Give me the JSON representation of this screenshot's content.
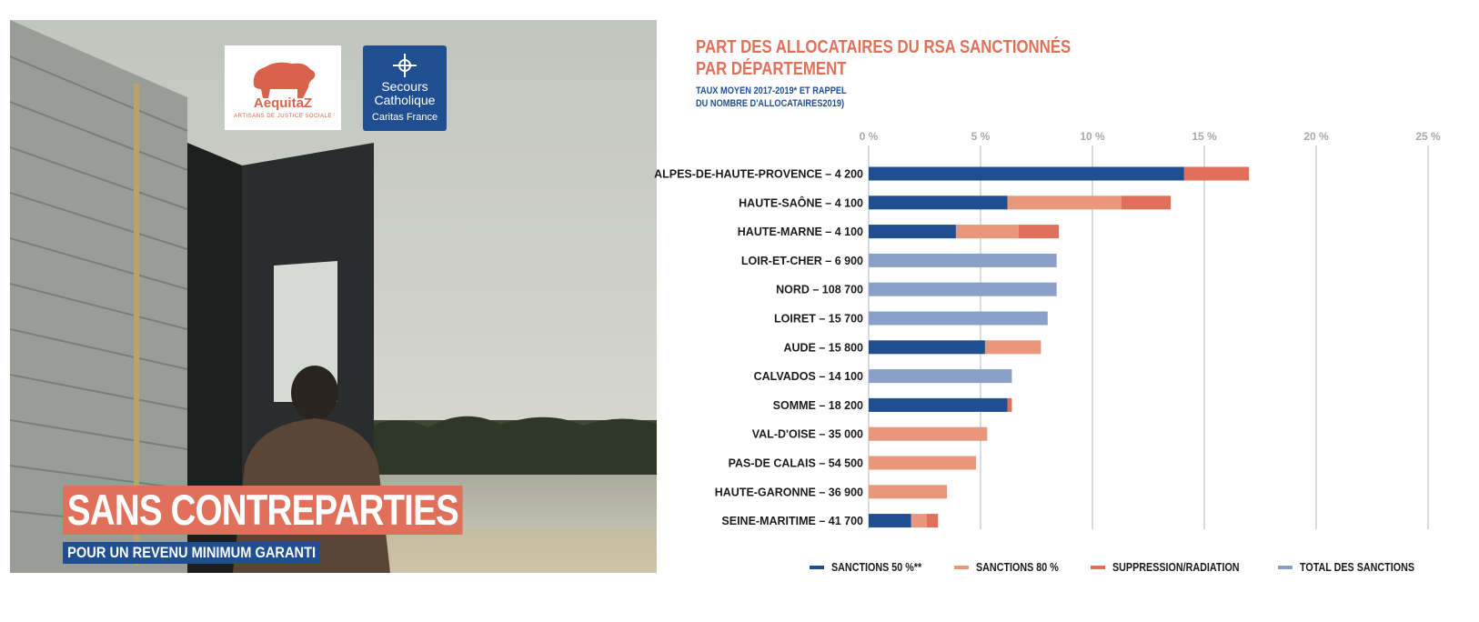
{
  "cover": {
    "title": "SANS CONTREPARTIES",
    "subtitle": "POUR UN REVENU MINIMUM GARANTI",
    "logo_aequitaz": {
      "name": "AequitaZ",
      "tagline": "ARTISANS DE JUSTICE SOCIALE"
    },
    "logo_secours": {
      "line1": "Secours",
      "line2": "Catholique",
      "line3": "Caritas France"
    },
    "colors": {
      "accent": "#e0705a",
      "blue": "#1f4e91"
    }
  },
  "chart_data": {
    "type": "bar",
    "orientation": "horizontal",
    "stacked": true,
    "title_line1": "PART DES ALLOCATAIRES DU RSA SANCTIONNÉS",
    "title_line2": "PAR DÉPARTEMENT",
    "subtitle_line1": "TAUX MOYEN 2017-2019* ET RAPPEL",
    "subtitle_line2": "DU NOMBRE D'ALLOCATAIRES2019)",
    "xlim": [
      0,
      25
    ],
    "ticks": [
      0,
      5,
      10,
      15,
      20,
      25
    ],
    "tick_labels": [
      "0 %",
      "5 %",
      "10 %",
      "15 %",
      "20 %",
      "25 %"
    ],
    "grid": true,
    "legend_position": "bottom",
    "categories": [
      "ALPES-DE-HAUTE-PROVENCE – 4 200",
      "HAUTE-SAÔNE – 4 100",
      "HAUTE-MARNE – 4 100",
      "LOIR-ET-CHER – 6 900",
      "NORD – 108 700",
      "LOIRET – 15 700",
      "AUDE – 15 800",
      "CALVADOS – 14 100",
      "SOMME – 18 200",
      "VAL-D'OISE – 35 000",
      "PAS-DE CALAIS – 54 500",
      "HAUTE-GARONNE – 36 900",
      "SEINE-MARITIME – 41 700"
    ],
    "series": [
      {
        "name": "SANCTIONS 50 %**",
        "color": "#1f4e91",
        "values": [
          14.1,
          6.2,
          3.9,
          0,
          0,
          0,
          5.2,
          0,
          6.2,
          0,
          0,
          0,
          1.9
        ]
      },
      {
        "name": "SANCTIONS 80 %",
        "color": "#e9967a",
        "values": [
          0,
          5.1,
          2.8,
          0,
          0,
          0,
          2.5,
          0,
          0,
          5.3,
          4.8,
          3.5,
          0.7
        ]
      },
      {
        "name": "SUPPRESSION/RADIATION",
        "color": "#e0705a",
        "values": [
          2.9,
          2.2,
          1.8,
          0,
          0,
          0,
          0,
          0,
          0.2,
          0,
          0,
          0,
          0.5
        ]
      },
      {
        "name": "TOTAL DES SANCTIONS",
        "color": "#8b9fcb",
        "values": [
          0,
          0,
          0,
          8.4,
          8.4,
          8.0,
          0,
          6.4,
          0,
          0,
          0,
          0,
          0
        ]
      }
    ]
  }
}
